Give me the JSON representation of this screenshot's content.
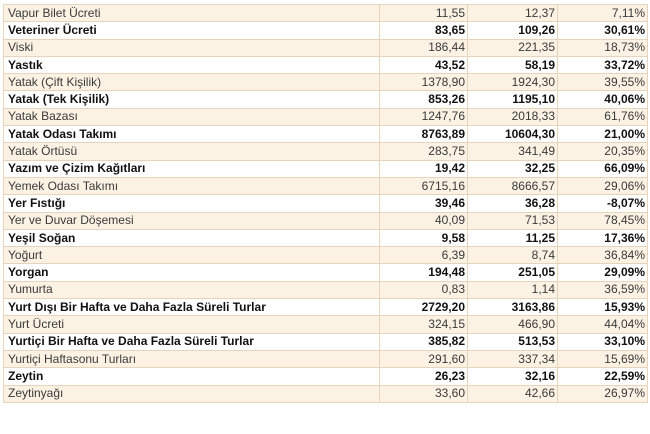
{
  "table": {
    "rows": [
      {
        "name": "Vapur Bilet Ücreti",
        "v1": "11,55",
        "v2": "12,37",
        "pct": "7,11%",
        "bold": false
      },
      {
        "name": "Veteriner Ücreti",
        "v1": "83,65",
        "v2": "109,26",
        "pct": "30,61%",
        "bold": true
      },
      {
        "name": "Viski",
        "v1": "186,44",
        "v2": "221,35",
        "pct": "18,73%",
        "bold": false
      },
      {
        "name": "Yastık",
        "v1": "43,52",
        "v2": "58,19",
        "pct": "33,72%",
        "bold": true
      },
      {
        "name": "Yatak (Çift Kişilik)",
        "v1": "1378,90",
        "v2": "1924,30",
        "pct": "39,55%",
        "bold": false
      },
      {
        "name": "Yatak (Tek Kişilik)",
        "v1": "853,26",
        "v2": "1195,10",
        "pct": "40,06%",
        "bold": true
      },
      {
        "name": "Yatak Bazası",
        "v1": "1247,76",
        "v2": "2018,33",
        "pct": "61,76%",
        "bold": false
      },
      {
        "name": "Yatak Odası Takımı",
        "v1": "8763,89",
        "v2": "10604,30",
        "pct": "21,00%",
        "bold": true
      },
      {
        "name": "Yatak Örtüsü",
        "v1": "283,75",
        "v2": "341,49",
        "pct": "20,35%",
        "bold": false
      },
      {
        "name": "Yazım ve Çizim Kağıtları",
        "v1": "19,42",
        "v2": "32,25",
        "pct": "66,09%",
        "bold": true
      },
      {
        "name": "Yemek Odası Takımı",
        "v1": "6715,16",
        "v2": "8666,57",
        "pct": "29,06%",
        "bold": false
      },
      {
        "name": "Yer Fıstığı",
        "v1": "39,46",
        "v2": "36,28",
        "pct": "-8,07%",
        "bold": true
      },
      {
        "name": "Yer ve Duvar Döşemesi",
        "v1": "40,09",
        "v2": "71,53",
        "pct": "78,45%",
        "bold": false
      },
      {
        "name": "Yeşil Soğan",
        "v1": "9,58",
        "v2": "11,25",
        "pct": "17,36%",
        "bold": true
      },
      {
        "name": "Yoğurt",
        "v1": "6,39",
        "v2": "8,74",
        "pct": "36,84%",
        "bold": false
      },
      {
        "name": "Yorgan",
        "v1": "194,48",
        "v2": "251,05",
        "pct": "29,09%",
        "bold": true
      },
      {
        "name": "Yumurta",
        "v1": "0,83",
        "v2": "1,14",
        "pct": "36,59%",
        "bold": false
      },
      {
        "name": "Yurt Dışı Bir Hafta ve Daha Fazla Süreli Turlar",
        "v1": "2729,20",
        "v2": "3163,86",
        "pct": "15,93%",
        "bold": true
      },
      {
        "name": "Yurt Ücreti",
        "v1": "324,15",
        "v2": "466,90",
        "pct": "44,04%",
        "bold": false
      },
      {
        "name": "Yurtiçi Bir Hafta ve Daha Fazla Süreli Turlar",
        "v1": "385,82",
        "v2": "513,53",
        "pct": "33,10%",
        "bold": true
      },
      {
        "name": "Yurtiçi Haftasonu Turları",
        "v1": "291,60",
        "v2": "337,34",
        "pct": "15,69%",
        "bold": false
      },
      {
        "name": "Zeytin",
        "v1": "26,23",
        "v2": "32,16",
        "pct": "22,59%",
        "bold": true
      },
      {
        "name": "Zeytinyağı",
        "v1": "33,60",
        "v2": "42,66",
        "pct": "26,97%",
        "bold": false
      }
    ]
  },
  "colors": {
    "stripe": "#fbf2e4",
    "border": "#e6d4bc",
    "text": "#3a3a3a"
  }
}
